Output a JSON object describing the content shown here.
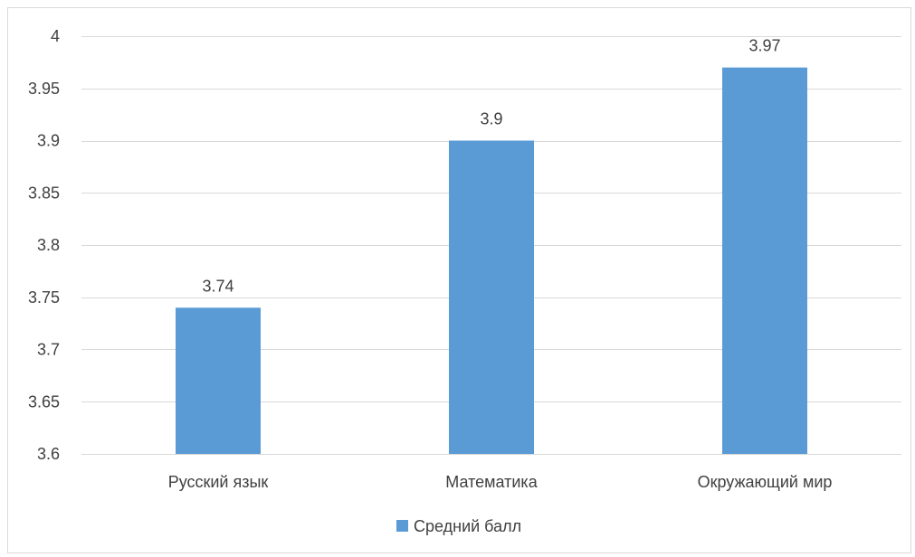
{
  "chart_data": {
    "type": "bar",
    "categories": [
      "Русский язык",
      "Математика",
      "Окружающий мир"
    ],
    "series": [
      {
        "name": "Средний балл",
        "values": [
          3.74,
          3.9,
          3.97
        ],
        "color": "#5b9bd5"
      }
    ],
    "data_labels": [
      "3.74",
      "3.9",
      "3.97"
    ],
    "ylim": [
      3.6,
      4.0
    ],
    "yticks": [
      3.6,
      3.65,
      3.7,
      3.75,
      3.8,
      3.85,
      3.9,
      3.95,
      4.0
    ],
    "ytick_labels": [
      "3.6",
      "3.65",
      "3.7",
      "3.75",
      "3.8",
      "3.85",
      "3.9",
      "3.95",
      "4"
    ],
    "grid": true,
    "legend_position": "bottom",
    "title": "",
    "xlabel": "",
    "ylabel": ""
  }
}
